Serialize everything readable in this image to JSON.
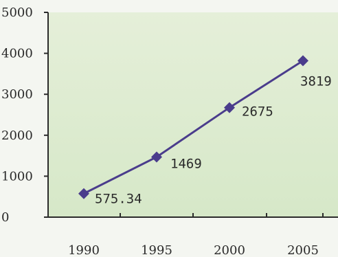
{
  "chart_data": {
    "type": "line",
    "x": [
      "1990",
      "1995",
      "2000",
      "2005"
    ],
    "values": [
      575.34,
      1469,
      2675,
      3819
    ],
    "data_labels": [
      "575.34",
      "1469",
      "2675",
      "3819"
    ],
    "y_ticks": [
      "0",
      "1000",
      "2000",
      "3000",
      "4000",
      "5000"
    ],
    "x_ticks": [
      "1990",
      "1995",
      "2000",
      "2005"
    ],
    "ylim": [
      0,
      5000
    ],
    "title": "",
    "xlabel": "",
    "ylabel": "",
    "grid": false,
    "marker": "diamond",
    "colors": {
      "line": "#4a3c8c",
      "marker": "#4a3c8c",
      "plot_area_top": "#e5efd9",
      "plot_area_bottom": "#d6e8c8",
      "axis": "#2a2a2a"
    }
  }
}
